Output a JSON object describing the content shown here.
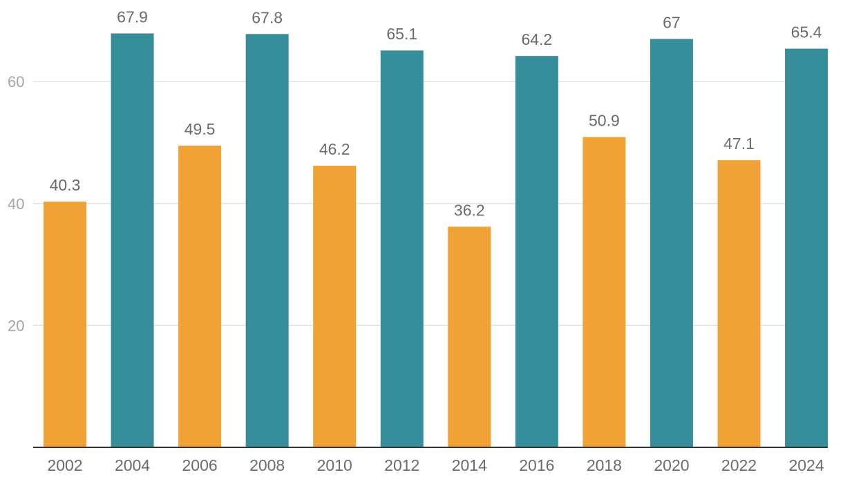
{
  "chart_data": {
    "type": "bar",
    "title": "",
    "xlabel": "",
    "ylabel": "",
    "categories": [
      "2002",
      "2004",
      "2006",
      "2008",
      "2010",
      "2012",
      "2014",
      "2016",
      "2018",
      "2020",
      "2022",
      "2024"
    ],
    "values": [
      40.3,
      67.9,
      49.5,
      67.8,
      46.2,
      65.1,
      36.2,
      64.2,
      50.9,
      67,
      47.1,
      65.4
    ],
    "data_labels": [
      "40.3",
      "67.9",
      "49.5",
      "67.8",
      "46.2",
      "65.1",
      "36.2",
      "64.2",
      "50.9",
      "67",
      "47.1",
      "65.4"
    ],
    "ylim": [
      0,
      75
    ],
    "yticks": [
      20,
      40,
      60
    ],
    "ytick_labels": [
      "20",
      "40",
      "60"
    ],
    "grid": true,
    "legend": "none",
    "colors": {
      "midterm": "#f0a236",
      "presidential": "#368e9a"
    },
    "bar_color_groups": [
      "midterm",
      "presidential",
      "midterm",
      "presidential",
      "midterm",
      "presidential",
      "midterm",
      "presidential",
      "midterm",
      "presidential",
      "midterm",
      "presidential"
    ]
  }
}
